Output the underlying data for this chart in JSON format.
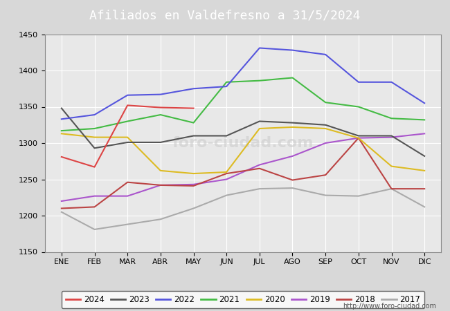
{
  "title": "Afiliados en Valdefresno a 31/5/2024",
  "title_bg_color": "#5599cc",
  "title_text_color": "white",
  "ylim": [
    1150,
    1450
  ],
  "yticks": [
    1150,
    1200,
    1250,
    1300,
    1350,
    1400,
    1450
  ],
  "months": [
    "ENE",
    "FEB",
    "MAR",
    "ABR",
    "MAY",
    "JUN",
    "JUL",
    "AGO",
    "SEP",
    "OCT",
    "NOV",
    "DIC"
  ],
  "url": "http://www.foro-ciudad.com",
  "series": {
    "2024": {
      "color": "#dd4444",
      "data": [
        1281,
        1267,
        1352,
        1349,
        1348,
        null,
        null,
        null,
        null,
        null,
        null,
        null
      ]
    },
    "2023": {
      "color": "#555555",
      "data": [
        1348,
        1293,
        1301,
        1301,
        1310,
        1310,
        1330,
        1328,
        1325,
        1310,
        1310,
        1282
      ]
    },
    "2022": {
      "color": "#5555dd",
      "data": [
        1333,
        1339,
        1366,
        1367,
        1375,
        1378,
        1431,
        1428,
        1422,
        1384,
        1384,
        1355
      ]
    },
    "2021": {
      "color": "#44bb44",
      "data": [
        1317,
        1320,
        1330,
        1339,
        1328,
        1384,
        1386,
        1390,
        1356,
        1350,
        1334,
        1332
      ]
    },
    "2020": {
      "color": "#ddbb22",
      "data": [
        1313,
        1308,
        1308,
        1262,
        1258,
        1260,
        1320,
        1322,
        1320,
        1307,
        1268,
        1262
      ]
    },
    "2019": {
      "color": "#aa55cc",
      "data": [
        1220,
        1227,
        1227,
        1242,
        1243,
        1250,
        1270,
        1282,
        1300,
        1307,
        1308,
        1313
      ]
    },
    "2018": {
      "color": "#bb4444",
      "data": [
        1210,
        1212,
        1246,
        1242,
        1241,
        1258,
        1265,
        1249,
        1256,
        1307,
        1237,
        1237
      ]
    },
    "2017": {
      "color": "#aaaaaa",
      "data": [
        1205,
        1181,
        1188,
        1195,
        1210,
        1228,
        1237,
        1238,
        1228,
        1227,
        1237,
        1212
      ]
    }
  },
  "plot_bg_color": "#e8e8e8",
  "fig_bg_color": "#d8d8d8",
  "grid_color": "white",
  "figsize": [
    6.5,
    4.5
  ],
  "dpi": 100
}
